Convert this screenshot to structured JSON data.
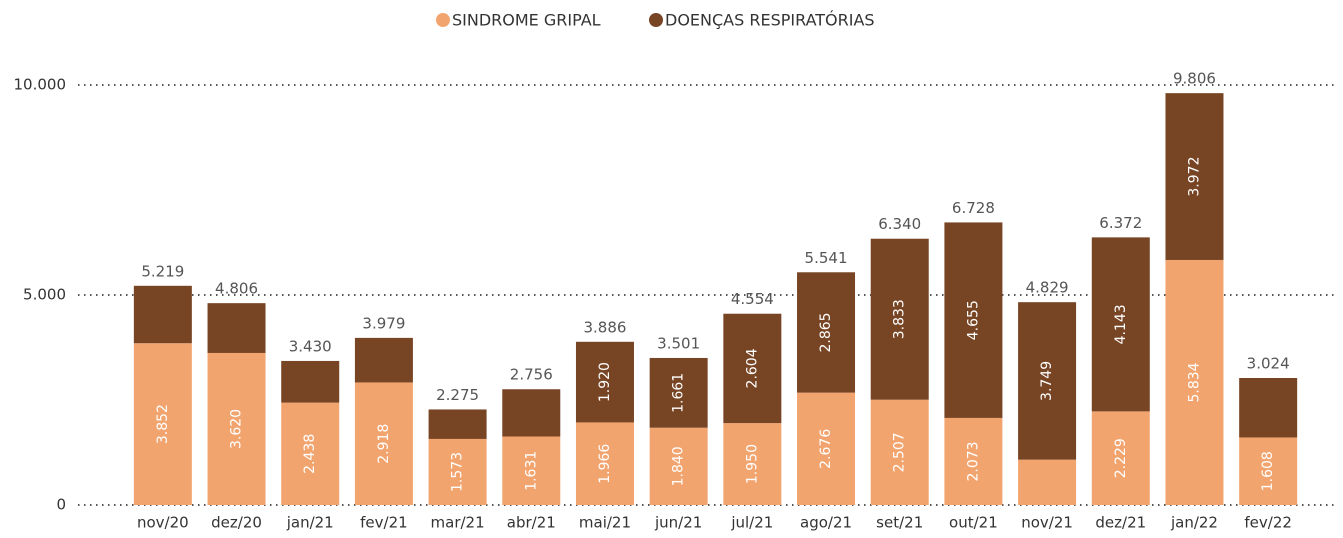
{
  "chart_data": {
    "type": "stacked-bar",
    "categories": [
      "nov/20",
      "dez/20",
      "jan/21",
      "fev/21",
      "mar/21",
      "abr/21",
      "mai/21",
      "jun/21",
      "jul/21",
      "ago/21",
      "set/21",
      "out/21",
      "nov/21",
      "dez/21",
      "jan/22",
      "fev/22"
    ],
    "series": [
      {
        "name": "SINDROME GRIPAL",
        "color": "#f2a46f",
        "values": [
          3852,
          3620,
          2438,
          2918,
          1573,
          1631,
          1966,
          1840,
          1950,
          2676,
          2507,
          2073,
          1080,
          2229,
          5834,
          1608
        ],
        "value_labels": [
          "3.852",
          "3.620",
          "2.438",
          "2.918",
          "1.573",
          "1.631",
          "1.966",
          "1.840",
          "1.950",
          "2.676",
          "2.507",
          "2.073",
          null,
          "2.229",
          "5.834",
          "1.608"
        ]
      },
      {
        "name": "DOENÇAS RESPIRATÓRIAS",
        "color": "#774424",
        "values": [
          1367,
          1186,
          992,
          1061,
          702,
          1125,
          1920,
          1661,
          2604,
          2865,
          3833,
          4655,
          3749,
          4143,
          3972,
          1416
        ],
        "value_labels": [
          null,
          null,
          null,
          null,
          null,
          null,
          "1.920",
          "1.661",
          "2.604",
          "2.865",
          "3.833",
          "4.655",
          "3.749",
          "4.143",
          "3.972",
          null
        ]
      }
    ],
    "totals": {
      "values": [
        5219,
        4806,
        3430,
        3979,
        2275,
        2756,
        3886,
        3501,
        4554,
        5541,
        6340,
        6728,
        4829,
        6372,
        9806,
        3024
      ],
      "value_labels": [
        "5.219",
        "4.806",
        "3.430",
        "3.979",
        "2.275",
        "2.756",
        "3.886",
        "3.501",
        "4.554",
        "5.541",
        "6.340",
        "6.728",
        "4.829",
        "6.372",
        "9.806",
        "3.024"
      ]
    },
    "ylim": [
      0,
      10000
    ],
    "yticks": [
      {
        "value": 0,
        "label": "0"
      },
      {
        "value": 5000,
        "label": "5.000"
      },
      {
        "value": 10000,
        "label": "10.000"
      }
    ],
    "grid": true,
    "legend": "top"
  }
}
